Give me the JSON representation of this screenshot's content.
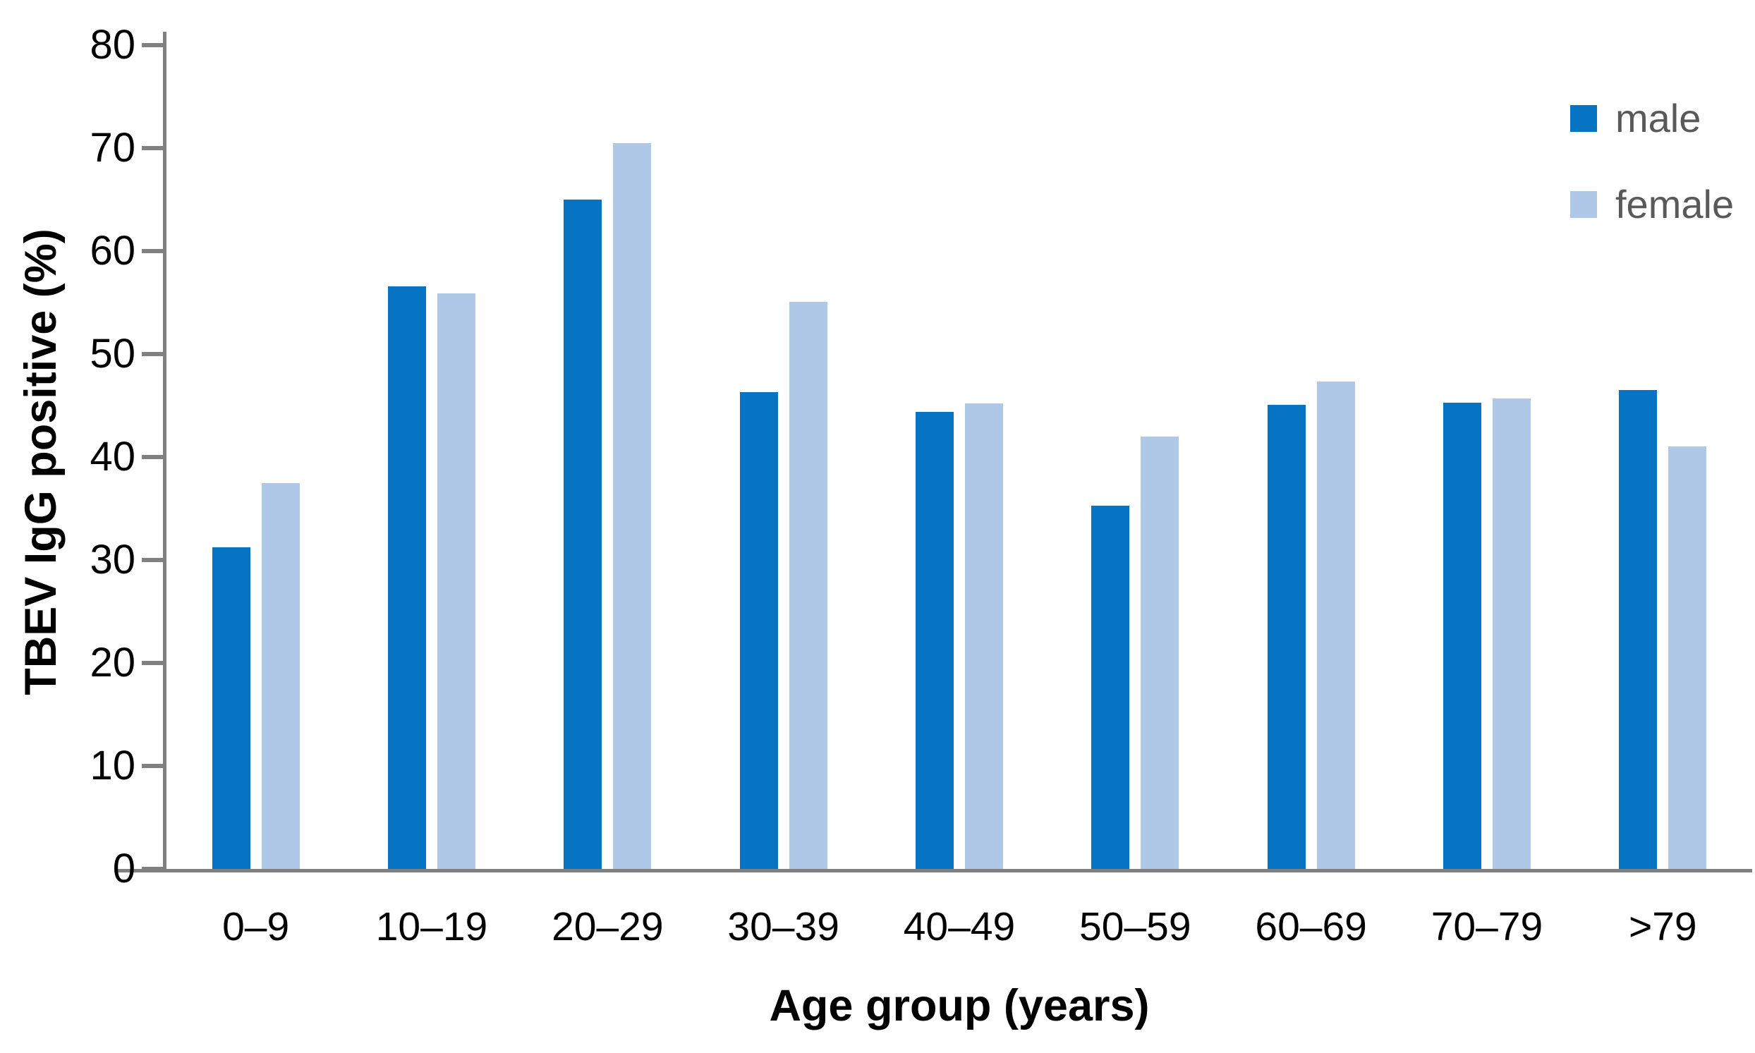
{
  "chart_data": {
    "type": "bar",
    "title": "",
    "xlabel": "Age group (years)",
    "ylabel": "TBEV IgG positive (%)",
    "categories": [
      "0–9",
      "10–19",
      "20–29",
      "30–39",
      "40–49",
      "50–59",
      "60–69",
      "70–79",
      ">79"
    ],
    "series": [
      {
        "name": "male",
        "color": "#0773C3",
        "values": [
          31.2,
          56.6,
          65.0,
          46.3,
          44.4,
          35.3,
          45.1,
          45.3,
          46.5
        ]
      },
      {
        "name": "female",
        "color": "#AFC8E8",
        "values": [
          37.5,
          55.9,
          70.5,
          55.1,
          45.2,
          42.0,
          47.3,
          45.7,
          41.0
        ]
      }
    ],
    "ylim": [
      0,
      80
    ],
    "yticks": [
      0,
      10,
      20,
      30,
      40,
      50,
      60,
      70,
      80
    ],
    "grid": false,
    "legend_position": "top-right"
  },
  "colors": {
    "axis": "#808080",
    "tick_label": "#000000",
    "legend_text": "#595959",
    "background": "#ffffff"
  }
}
